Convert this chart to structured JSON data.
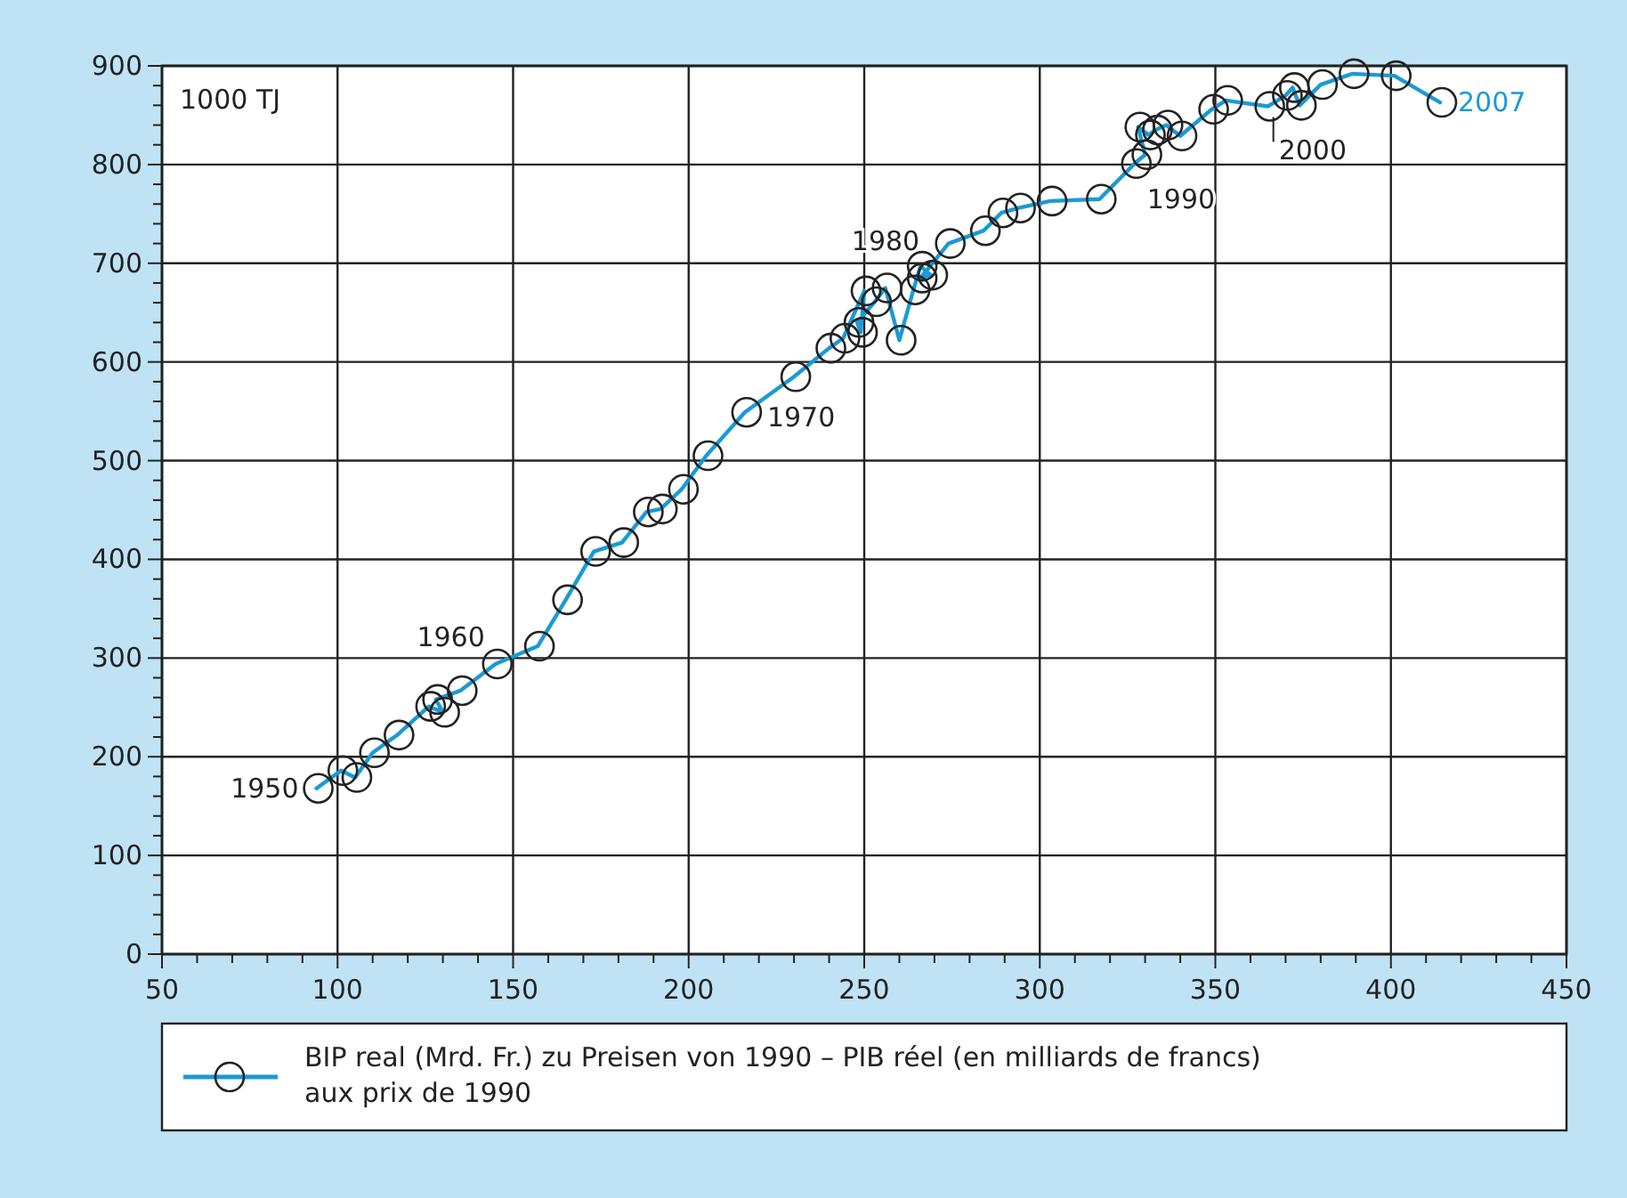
{
  "chart_data": {
    "type": "line",
    "ylabel": "1000 TJ",
    "marker": "circle",
    "grid": true,
    "legend": "bottom",
    "xlim": [
      50,
      450
    ],
    "ylim": [
      0,
      900
    ],
    "xticks": [
      50,
      {
        "value": 60,
        "label": null
      },
      {
        "value": 70,
        "label": null
      },
      {
        "value": 80,
        "label": null
      },
      {
        "value": 90,
        "label": null
      },
      100,
      {
        "value": 110,
        "label": null
      },
      {
        "value": 120,
        "label": null
      },
      {
        "value": 130,
        "label": null
      },
      {
        "value": 140,
        "label": null
      },
      150,
      {
        "value": 160,
        "label": null
      },
      {
        "value": 170,
        "label": null
      },
      {
        "value": 180,
        "label": null
      },
      {
        "value": 190,
        "label": null
      },
      200,
      {
        "value": 210,
        "label": null
      },
      {
        "value": 220,
        "label": null
      },
      {
        "value": 230,
        "label": null
      },
      {
        "value": 240,
        "label": null
      },
      250,
      {
        "value": 260,
        "label": null
      },
      {
        "value": 270,
        "label": null
      },
      {
        "value": 280,
        "label": null
      },
      {
        "value": 290,
        "label": null
      },
      300,
      {
        "value": 310,
        "label": null
      },
      {
        "value": 320,
        "label": null
      },
      {
        "value": 330,
        "label": null
      },
      {
        "value": 340,
        "label": null
      },
      350,
      {
        "value": 360,
        "label": null
      },
      {
        "value": 370,
        "label": null
      },
      {
        "value": 380,
        "label": null
      },
      {
        "value": 390,
        "label": null
      },
      400,
      {
        "value": 410,
        "label": null
      },
      {
        "value": 420,
        "label": null
      },
      {
        "value": 430,
        "label": null
      },
      {
        "value": 440,
        "label": null
      },
      450
    ],
    "yticks": [
      0,
      {
        "value": 20,
        "label": null
      },
      {
        "value": 40,
        "label": null
      },
      {
        "value": 60,
        "label": null
      },
      {
        "value": 80,
        "label": null
      },
      100,
      {
        "value": 120,
        "label": null
      },
      {
        "value": 140,
        "label": null
      },
      {
        "value": 160,
        "label": null
      },
      {
        "value": 180,
        "label": null
      },
      200,
      {
        "value": 220,
        "label": null
      },
      {
        "value": 240,
        "label": null
      },
      {
        "value": 260,
        "label": null
      },
      {
        "value": 280,
        "label": null
      },
      300,
      {
        "value": 320,
        "label": null
      },
      {
        "value": 340,
        "label": null
      },
      {
        "value": 360,
        "label": null
      },
      {
        "value": 380,
        "label": null
      },
      400,
      {
        "value": 420,
        "label": null
      },
      {
        "value": 440,
        "label": null
      },
      {
        "value": 460,
        "label": null
      },
      {
        "value": 480,
        "label": null
      },
      500,
      {
        "value": 520,
        "label": null
      },
      {
        "value": 540,
        "label": null
      },
      {
        "value": 560,
        "label": null
      },
      {
        "value": 580,
        "label": null
      },
      600,
      {
        "value": 620,
        "label": null
      },
      {
        "value": 640,
        "label": null
      },
      {
        "value": 660,
        "label": null
      },
      {
        "value": 680,
        "label": null
      },
      700,
      {
        "value": 720,
        "label": null
      },
      {
        "value": 740,
        "label": null
      },
      {
        "value": 760,
        "label": null
      },
      {
        "value": 780,
        "label": null
      },
      800,
      {
        "value": 820,
        "label": null
      },
      {
        "value": 840,
        "label": null
      },
      {
        "value": 860,
        "label": null
      },
      {
        "value": 880,
        "label": null
      },
      900
    ],
    "series": [
      {
        "name": "BIP real (Mrd. Fr.) zu Preisen von 1990 – PIB réel (en milliards de francs) aux prix de 1990",
        "color": "#1a9ad6",
        "x": [
          94,
          101,
          105,
          110,
          117,
          126,
          130,
          128,
          135,
          145,
          157,
          165,
          173,
          181,
          188,
          192,
          198,
          205,
          216,
          230,
          240,
          244,
          250,
          249,
          248,
          253,
          256,
          260,
          264,
          266,
          269,
          266,
          274,
          284,
          289,
          294,
          303,
          317,
          327,
          330,
          328,
          331,
          333,
          336,
          340,
          349,
          353,
          365,
          370,
          372,
          374,
          380,
          389,
          401,
          414
        ],
        "values": [
          168,
          186,
          179,
          204,
          222,
          251,
          245,
          258,
          267,
          294,
          312,
          359,
          408,
          417,
          448,
          451,
          471,
          505,
          549,
          585,
          614,
          624,
          672,
          630,
          640,
          661,
          675,
          622,
          673,
          697,
          688,
          685,
          720,
          733,
          751,
          756,
          763,
          765,
          801,
          810,
          838,
          830,
          835,
          840,
          829,
          856,
          865,
          859,
          870,
          878,
          860,
          881,
          892,
          890,
          863
        ]
      }
    ],
    "annotations": [
      {
        "text": "1950",
        "x": 94,
        "y": 168
      },
      {
        "text": "1960",
        "x": 145,
        "y": 294
      },
      {
        "text": "1970",
        "x": 230,
        "y": 585
      },
      {
        "text": "1980",
        "x": 250,
        "y": 672
      },
      {
        "text": "1990",
        "x": 327,
        "y": 801
      },
      {
        "text": "2000",
        "x": 365,
        "y": 859
      },
      {
        "text": "2007",
        "x": 414,
        "y": 863
      }
    ]
  }
}
